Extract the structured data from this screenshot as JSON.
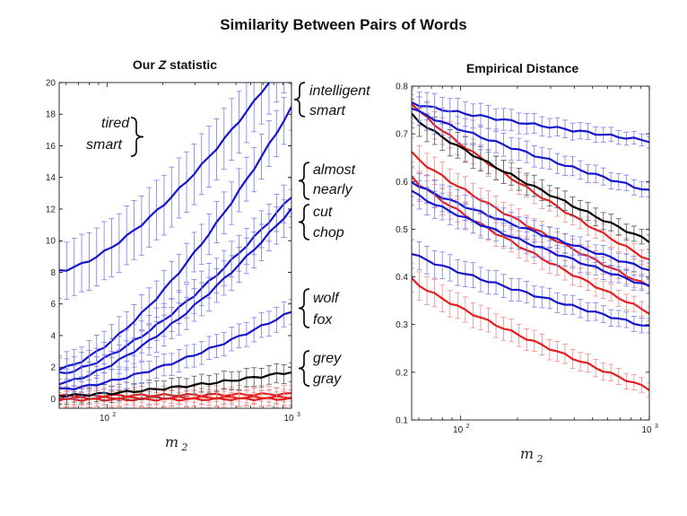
{
  "title": "Similarity Between Pairs of Words",
  "colors": {
    "blue": "#1515cc",
    "blue_err": "#7b7bea",
    "red": "#e51d1d",
    "red_err": "#f08a8a",
    "black": "#000000",
    "black_err": "#555555"
  },
  "chart_data": [
    {
      "type": "line",
      "title_parts": [
        "Our ",
        "Z",
        " statistic"
      ],
      "xlabel": "m",
      "xlabel_sub": "2",
      "xscale": "log",
      "xlim": [
        55,
        1000
      ],
      "ylim": [
        -0.6,
        20
      ],
      "xticks": [
        {
          "base": "10",
          "exp": "2"
        },
        {
          "base": "10",
          "exp": "3"
        }
      ],
      "yticks": [
        0,
        2,
        4,
        6,
        8,
        10,
        12,
        14,
        16,
        18,
        20
      ],
      "annotations": [
        {
          "words": [
            "intelligent",
            "smart"
          ]
        },
        {
          "words": [
            "almost",
            "nearly"
          ]
        },
        {
          "words": [
            "cut",
            "chop"
          ]
        },
        {
          "words": [
            "wolf",
            "fox"
          ]
        },
        {
          "words": [
            "grey",
            "gray"
          ]
        },
        {
          "words": [
            "tired",
            "smart"
          ]
        }
      ],
      "series": [
        {
          "color": "blue",
          "start": 8.1,
          "end": 22.0,
          "err_start": 1.8,
          "err_end": 2.0
        },
        {
          "color": "blue",
          "start": 1.9,
          "end": 18.4,
          "err_start": 0.9,
          "err_end": 1.5
        },
        {
          "color": "blue",
          "start": 1.6,
          "end": 12.8,
          "err_start": 0.9,
          "err_end": 1.2
        },
        {
          "color": "blue",
          "start": 1.0,
          "end": 12.0,
          "err_start": 0.8,
          "err_end": 1.2
        },
        {
          "color": "blue",
          "start": 0.6,
          "end": 5.5,
          "err_start": 0.6,
          "err_end": 0.8
        },
        {
          "color": "black",
          "start": 0.2,
          "end": 1.7,
          "err_start": 0.5,
          "err_end": 0.6
        },
        {
          "color": "red",
          "start": 0.2,
          "end": 0.3,
          "err_start": 0.5,
          "err_end": 0.5
        },
        {
          "color": "red",
          "start": 0.05,
          "end": 0.1,
          "err_start": 0.5,
          "err_end": 0.5
        },
        {
          "color": "red",
          "start": -0.05,
          "end": 0.0,
          "err_start": 0.5,
          "err_end": 0.5
        }
      ]
    },
    {
      "type": "line",
      "title": "Empirical Distance",
      "xlabel": "m",
      "xlabel_sub": "2",
      "xscale": "log",
      "xlim": [
        55,
        1000
      ],
      "ylim": [
        0.1,
        0.8
      ],
      "xticks": [
        {
          "base": "10",
          "exp": "2"
        },
        {
          "base": "10",
          "exp": "3"
        }
      ],
      "yticks": [
        0.1,
        0.2,
        0.3,
        0.4,
        0.5,
        0.6,
        0.7,
        0.8
      ],
      "series": [
        {
          "color": "blue",
          "start": 0.765,
          "end": 0.685,
          "err_start": 0.03,
          "err_end": 0.012
        },
        {
          "color": "blue",
          "start": 0.755,
          "end": 0.58,
          "err_start": 0.03,
          "err_end": 0.015
        },
        {
          "color": "black",
          "start": 0.74,
          "end": 0.475,
          "err_start": 0.03,
          "err_end": 0.015
        },
        {
          "color": "red",
          "start": 0.765,
          "end": 0.435,
          "err_start": 0.03,
          "err_end": 0.015
        },
        {
          "color": "red",
          "start": 0.66,
          "end": 0.38,
          "err_start": 0.03,
          "err_end": 0.015
        },
        {
          "color": "blue",
          "start": 0.6,
          "end": 0.415,
          "err_start": 0.03,
          "err_end": 0.015
        },
        {
          "color": "blue",
          "start": 0.58,
          "end": 0.38,
          "err_start": 0.03,
          "err_end": 0.015
        },
        {
          "color": "red",
          "start": 0.61,
          "end": 0.325,
          "err_start": 0.03,
          "err_end": 0.015
        },
        {
          "color": "blue",
          "start": 0.45,
          "end": 0.295,
          "err_start": 0.03,
          "err_end": 0.015
        },
        {
          "color": "red",
          "start": 0.395,
          "end": 0.165,
          "err_start": 0.03,
          "err_end": 0.015
        }
      ]
    }
  ]
}
